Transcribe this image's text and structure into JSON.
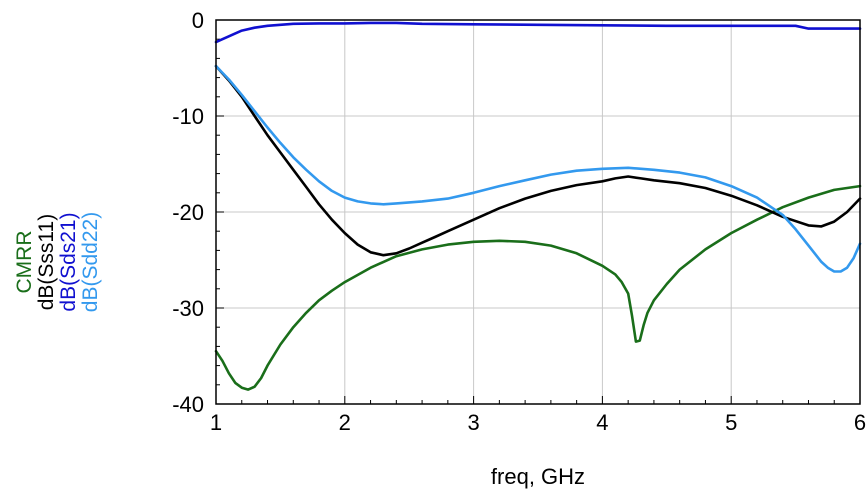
{
  "chart_data": {
    "type": "line",
    "xlabel": "freq, GHz",
    "ylabels": [
      {
        "text": "CMRR",
        "color": "#1a6e1a"
      },
      {
        "text": "dB(Sss11)",
        "color": "#000000"
      },
      {
        "text": "dB(Sds21)",
        "color": "#1010d0"
      },
      {
        "text": "dB(Sdd22)",
        "color": "#3399ee"
      }
    ],
    "xlim": [
      1,
      6
    ],
    "ylim": [
      -40,
      0
    ],
    "xticks": [
      1,
      2,
      3,
      4,
      5,
      6
    ],
    "yticks": [
      0,
      -10,
      -20,
      -30,
      -40
    ],
    "xtick_labels": [
      "1",
      "2",
      "3",
      "4",
      "5",
      "6"
    ],
    "ytick_labels": [
      "0",
      "-10",
      "-20",
      "-30",
      "-40"
    ],
    "grid": true,
    "legend": "none",
    "series": [
      {
        "name": "CMRR",
        "color": "#1a6e1a",
        "x": [
          1.0,
          1.05,
          1.1,
          1.15,
          1.2,
          1.25,
          1.3,
          1.35,
          1.4,
          1.5,
          1.6,
          1.7,
          1.8,
          1.9,
          2.0,
          2.2,
          2.4,
          2.6,
          2.8,
          3.0,
          3.2,
          3.4,
          3.6,
          3.8,
          4.0,
          4.1,
          4.15,
          4.2,
          4.23,
          4.26,
          4.29,
          4.32,
          4.35,
          4.4,
          4.5,
          4.6,
          4.8,
          5.0,
          5.2,
          5.4,
          5.6,
          5.8,
          6.0
        ],
        "y": [
          -34.5,
          -35.5,
          -36.8,
          -37.8,
          -38.3,
          -38.5,
          -38.2,
          -37.3,
          -36.0,
          -33.8,
          -32.0,
          -30.5,
          -29.2,
          -28.2,
          -27.3,
          -25.8,
          -24.6,
          -23.9,
          -23.4,
          -23.1,
          -23.0,
          -23.1,
          -23.5,
          -24.3,
          -25.6,
          -26.5,
          -27.3,
          -28.5,
          -30.8,
          -33.5,
          -33.4,
          -31.8,
          -30.5,
          -29.2,
          -27.5,
          -26.0,
          -23.9,
          -22.2,
          -20.8,
          -19.5,
          -18.5,
          -17.7,
          -17.3
        ]
      },
      {
        "name": "dB(Sss11)",
        "color": "#000000",
        "x": [
          1.0,
          1.1,
          1.2,
          1.3,
          1.4,
          1.5,
          1.6,
          1.7,
          1.8,
          1.9,
          2.0,
          2.1,
          2.2,
          2.3,
          2.4,
          2.5,
          2.6,
          2.7,
          2.8,
          3.0,
          3.2,
          3.4,
          3.6,
          3.8,
          4.0,
          4.1,
          4.2,
          4.3,
          4.4,
          4.6,
          4.8,
          5.0,
          5.2,
          5.4,
          5.6,
          5.7,
          5.8,
          5.9,
          6.0
        ],
        "y": [
          -4.8,
          -6.3,
          -8.0,
          -10.0,
          -12.0,
          -13.8,
          -15.6,
          -17.4,
          -19.2,
          -20.8,
          -22.2,
          -23.4,
          -24.2,
          -24.5,
          -24.3,
          -23.8,
          -23.2,
          -22.6,
          -22.0,
          -20.8,
          -19.6,
          -18.6,
          -17.8,
          -17.2,
          -16.8,
          -16.5,
          -16.3,
          -16.5,
          -16.7,
          -17.0,
          -17.5,
          -18.3,
          -19.3,
          -20.5,
          -21.4,
          -21.5,
          -21.0,
          -20.0,
          -18.6
        ]
      },
      {
        "name": "dB(Sds21)",
        "color": "#1010d0",
        "x": [
          1.0,
          1.05,
          1.1,
          1.15,
          1.2,
          1.3,
          1.4,
          1.5,
          1.6,
          1.8,
          2.0,
          2.2,
          2.4,
          2.6,
          3.0,
          3.5,
          4.0,
          4.5,
          5.0,
          5.5,
          5.6,
          5.8,
          6.0
        ],
        "y": [
          -2.3,
          -2.0,
          -1.7,
          -1.4,
          -1.1,
          -0.8,
          -0.6,
          -0.5,
          -0.4,
          -0.35,
          -0.35,
          -0.3,
          -0.3,
          -0.4,
          -0.45,
          -0.5,
          -0.55,
          -0.6,
          -0.6,
          -0.6,
          -0.9,
          -0.9,
          -0.9
        ]
      },
      {
        "name": "dB(Sdd22)",
        "color": "#3399ee",
        "x": [
          1.0,
          1.1,
          1.2,
          1.3,
          1.4,
          1.5,
          1.6,
          1.7,
          1.8,
          1.9,
          2.0,
          2.1,
          2.2,
          2.3,
          2.4,
          2.5,
          2.6,
          2.8,
          3.0,
          3.2,
          3.4,
          3.6,
          3.8,
          4.0,
          4.2,
          4.4,
          4.6,
          4.8,
          5.0,
          5.2,
          5.4,
          5.5,
          5.6,
          5.7,
          5.75,
          5.8,
          5.85,
          5.9,
          5.95,
          6.0
        ],
        "y": [
          -4.8,
          -6.2,
          -7.8,
          -9.5,
          -11.2,
          -12.8,
          -14.3,
          -15.6,
          -16.8,
          -17.8,
          -18.5,
          -18.9,
          -19.1,
          -19.2,
          -19.1,
          -19.0,
          -18.9,
          -18.6,
          -18.0,
          -17.3,
          -16.7,
          -16.1,
          -15.7,
          -15.5,
          -15.4,
          -15.6,
          -15.9,
          -16.4,
          -17.3,
          -18.5,
          -20.3,
          -21.8,
          -23.5,
          -25.2,
          -25.8,
          -26.2,
          -26.2,
          -25.8,
          -24.8,
          -23.3
        ]
      }
    ]
  }
}
